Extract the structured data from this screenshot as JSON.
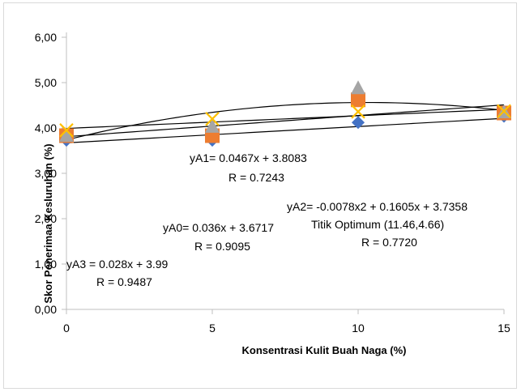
{
  "chart_data": {
    "type": "scatter",
    "xlabel": "Konsentrasi Kulit Buah Naga (%)",
    "ylabel": "Skor Penerimaa Kesluruhan (%)",
    "x_ticks": [
      "0",
      "5",
      "10",
      "15"
    ],
    "y_ticks": [
      "0,00",
      "1,00",
      "2,00",
      "3,00",
      "4,00",
      "5,00",
      "6,00"
    ],
    "xlim": [
      0,
      15
    ],
    "ylim": [
      0,
      6
    ],
    "grid": false,
    "x": [
      0,
      5,
      10,
      15
    ],
    "series": [
      {
        "key": "A0",
        "marker": "diamond",
        "color": "#4472c4",
        "values": [
          3.73,
          3.73,
          4.12,
          4.26
        ],
        "trend": {
          "kind": "linear",
          "a": 0.036,
          "b": 3.6717
        }
      },
      {
        "key": "A1",
        "marker": "square",
        "color": "#ed7d31",
        "values": [
          3.83,
          3.83,
          4.62,
          4.33
        ],
        "trend": {
          "kind": "linear",
          "a": 0.0467,
          "b": 3.8083
        }
      },
      {
        "key": "A2",
        "marker": "triangle",
        "color": "#a5a5a5",
        "values": [
          3.82,
          4.02,
          4.87,
          4.34
        ],
        "trend": {
          "kind": "poly2",
          "a": -0.0078,
          "b": 0.1605,
          "c": 3.7358
        }
      },
      {
        "key": "A3",
        "marker": "x",
        "color": "#ffc000",
        "values": [
          3.95,
          4.2,
          4.36,
          4.37
        ],
        "trend": {
          "kind": "linear",
          "a": 0.028,
          "b": 3.99
        }
      }
    ],
    "annotations": [
      {
        "id": "a1",
        "lines": [
          "yA1= 0.0467x + 3.8083",
          "R = 0.7243"
        ]
      },
      {
        "id": "a2",
        "lines": [
          "yA2= -0.0078x2 + 0.1605x + 3.7358",
          "Titik Optimum (11.46,4.66)",
          "R = 0.7720"
        ]
      },
      {
        "id": "a0",
        "lines": [
          "yA0= 0.036x + 3.6717",
          "R = 0.9095"
        ]
      },
      {
        "id": "a3",
        "lines": [
          "yA3 = 0.028x + 3.99",
          "R = 0.9487"
        ]
      }
    ]
  }
}
